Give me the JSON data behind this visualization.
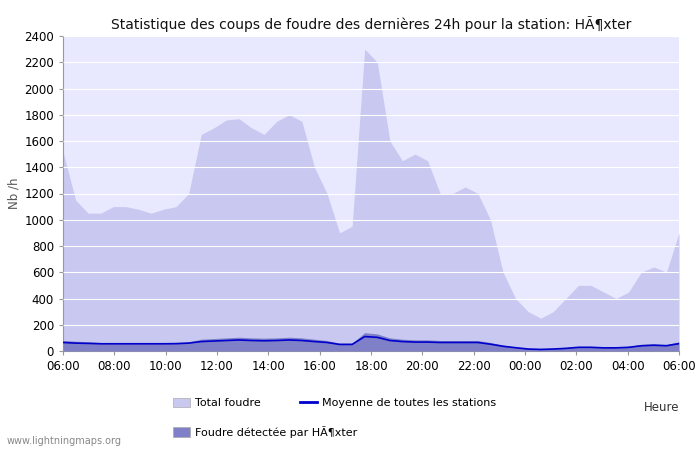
{
  "title": "Statistique des coups de foudre des dernières 24h pour la station: HÃ¶xter",
  "xlabel": "Heure",
  "ylabel": "Nb /h",
  "ylim": [
    0,
    2400
  ],
  "yticks": [
    0,
    200,
    400,
    600,
    800,
    1000,
    1200,
    1400,
    1600,
    1800,
    2000,
    2200,
    2400
  ],
  "xtick_labels": [
    "06:00",
    "08:00",
    "10:00",
    "12:00",
    "14:00",
    "16:00",
    "18:00",
    "20:00",
    "22:00",
    "00:00",
    "02:00",
    "04:00",
    "06:00"
  ],
  "watermark": "www.lightningmaps.org",
  "legend_items": [
    {
      "label": "Total foudre",
      "color": "#c8c8f0",
      "type": "patch"
    },
    {
      "label": "Moyenne de toutes les stations",
      "color": "#0000cc",
      "type": "line"
    },
    {
      "label": "Foudre détectée par HÃ¶xter",
      "color": "#8080c8",
      "type": "patch"
    }
  ],
  "total_foudre": [
    1520,
    1150,
    1050,
    1050,
    1100,
    1100,
    1080,
    1050,
    1080,
    1100,
    1200,
    1650,
    1700,
    1760,
    1770,
    1700,
    1650,
    1750,
    1800,
    1750,
    1400,
    1200,
    900,
    950,
    2300,
    2200,
    1600,
    1450,
    1500,
    1450,
    1200,
    1200,
    1250,
    1200,
    1000,
    600,
    400,
    300,
    250,
    300,
    400,
    500,
    500,
    450,
    400,
    450,
    600,
    640,
    600,
    900
  ],
  "detected_foudre": [
    80,
    75,
    70,
    65,
    65,
    65,
    65,
    65,
    65,
    65,
    70,
    90,
    95,
    100,
    105,
    100,
    98,
    100,
    105,
    100,
    90,
    80,
    60,
    60,
    140,
    130,
    100,
    90,
    85,
    85,
    80,
    80,
    80,
    80,
    65,
    45,
    30,
    20,
    15,
    20,
    25,
    35,
    35,
    30,
    30,
    35,
    50,
    55,
    50,
    70
  ],
  "moyenne": [
    65,
    60,
    58,
    55,
    55,
    55,
    55,
    55,
    55,
    56,
    60,
    72,
    76,
    80,
    84,
    80,
    78,
    80,
    84,
    80,
    72,
    65,
    50,
    50,
    110,
    104,
    80,
    72,
    68,
    68,
    65,
    65,
    65,
    65,
    52,
    36,
    25,
    15,
    12,
    15,
    20,
    28,
    28,
    24,
    24,
    28,
    40,
    44,
    40,
    56
  ],
  "color_total": "#c8c8f0",
  "color_detected": "#8080c8",
  "color_moyenne": "#0000cc",
  "background_color": "#ffffff",
  "plot_bg_color": "#e8e8ff",
  "title_fontsize": 10,
  "axis_fontsize": 8.5,
  "tick_fontsize": 8.5,
  "grid_color": "#ffffff",
  "spine_color": "#999999"
}
